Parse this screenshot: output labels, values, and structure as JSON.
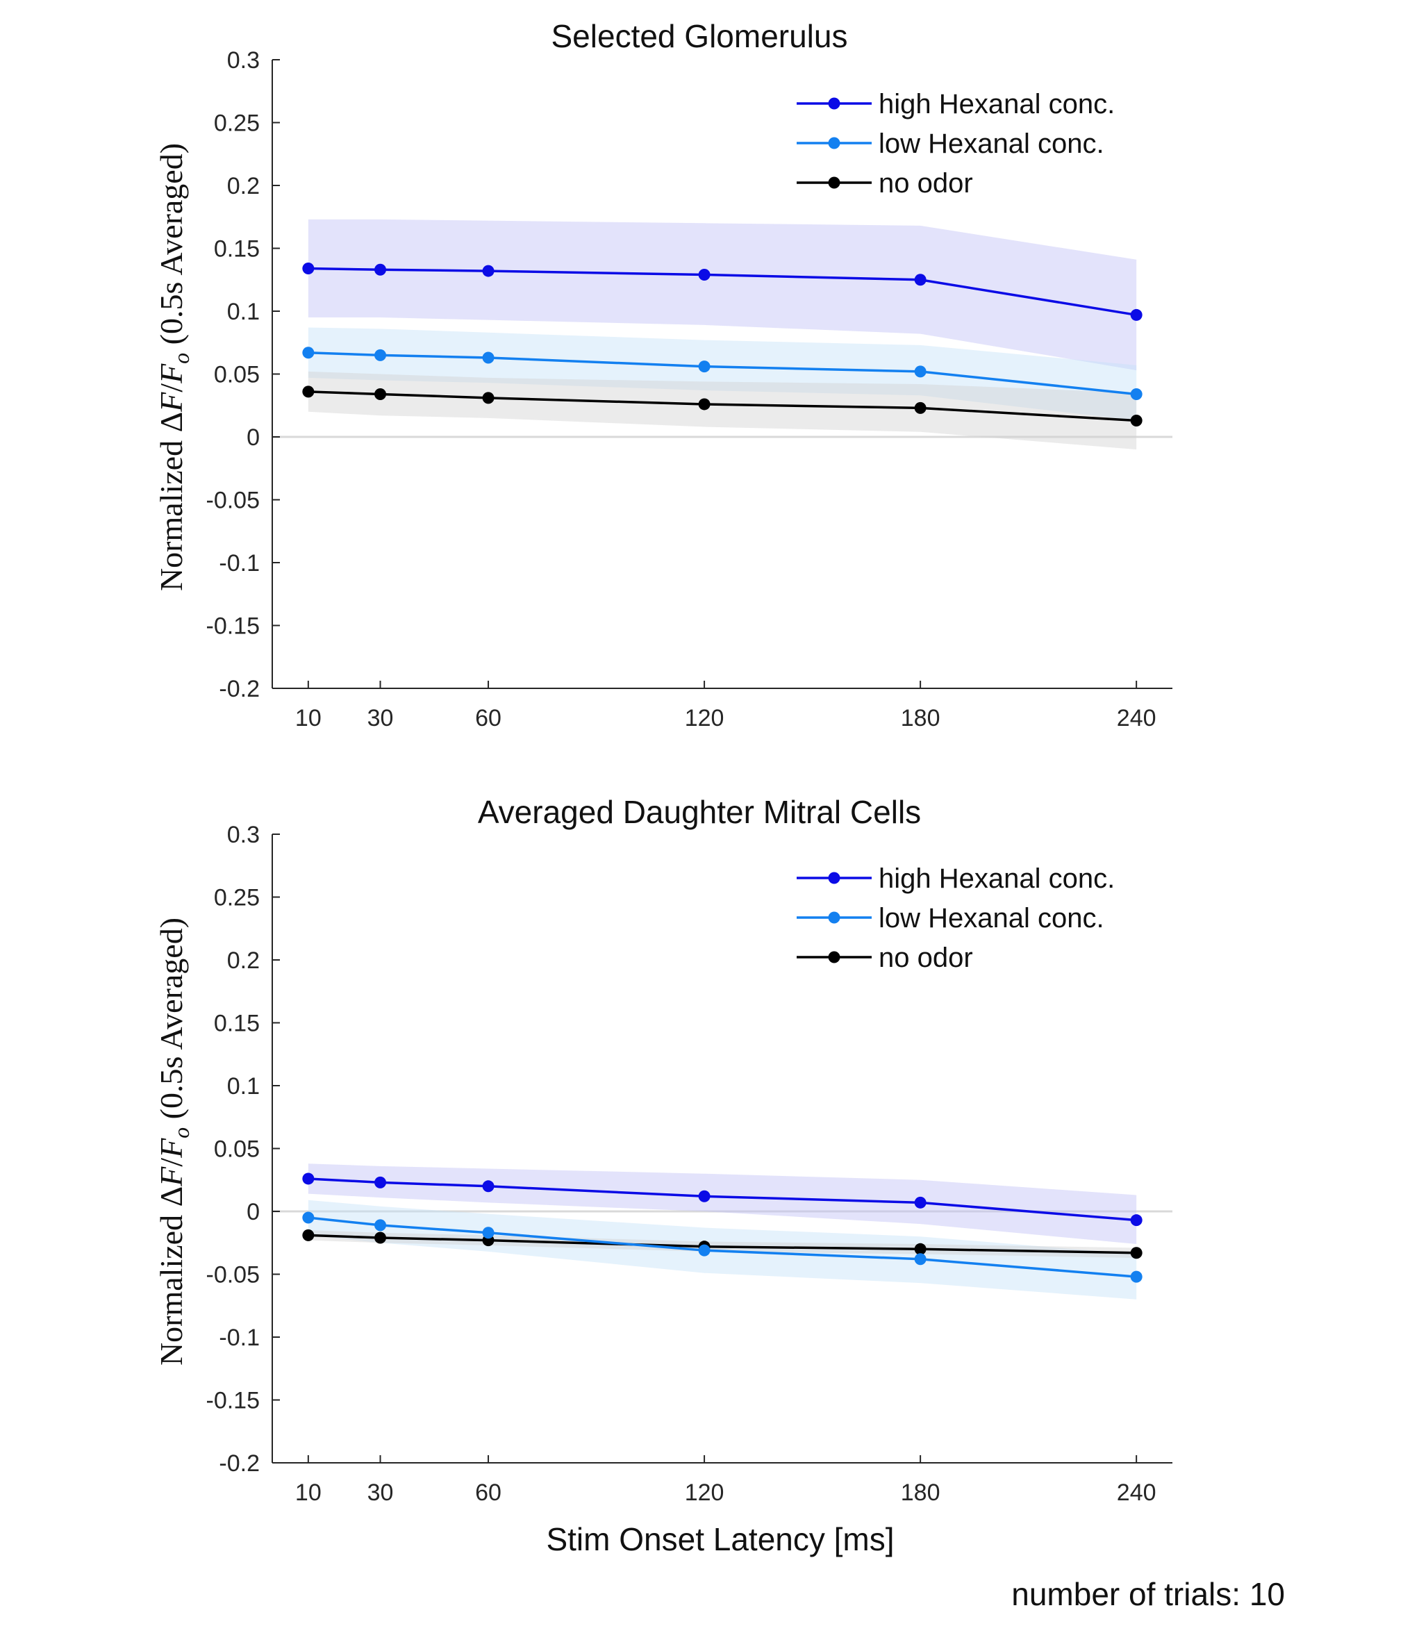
{
  "chart_data": [
    {
      "type": "line",
      "title": "Selected Glomerulus",
      "xlabel": "",
      "ylabel": "Normalized ΔF/Fo (0.5s Averaged)",
      "ylabel_parts": {
        "prefix": "Normalized ",
        "delta": "Δ",
        "F": "F",
        "slash": "/",
        "F2": "F",
        "sub": "o",
        "suffix": " (0.5s Averaged)"
      },
      "x": [
        10,
        30,
        60,
        120,
        180,
        240
      ],
      "xticks": [
        "10",
        "30",
        "60",
        "120",
        "180",
        "240"
      ],
      "xlim": [
        0,
        250
      ],
      "ylim": [
        -0.2,
        0.3
      ],
      "yticks": [
        "-0.2",
        "-0.15",
        "-0.1",
        "-0.05",
        "0",
        "0.05",
        "0.1",
        "0.15",
        "0.2",
        "0.25",
        "0.3"
      ],
      "legend_position": "top-right",
      "grid": false,
      "zero_line": true,
      "series": [
        {
          "name": "high Hexanal conc.",
          "color": "#0b0be6",
          "band_color": "#bdbdf5",
          "values": [
            0.134,
            0.133,
            0.132,
            0.129,
            0.125,
            0.097
          ],
          "lower": [
            0.095,
            0.095,
            0.093,
            0.089,
            0.082,
            0.053
          ],
          "upper": [
            0.173,
            0.173,
            0.172,
            0.17,
            0.168,
            0.141
          ]
        },
        {
          "name": "low Hexanal conc.",
          "color": "#1380f0",
          "band_color": "#c2dff9",
          "values": [
            0.067,
            0.065,
            0.063,
            0.056,
            0.052,
            0.034
          ],
          "lower": [
            0.047,
            0.045,
            0.043,
            0.037,
            0.033,
            0.013
          ],
          "upper": [
            0.087,
            0.086,
            0.083,
            0.077,
            0.073,
            0.057
          ]
        },
        {
          "name": "no odor",
          "color": "#000000",
          "band_color": "#cfcfcf",
          "values": [
            0.036,
            0.034,
            0.031,
            0.026,
            0.023,
            0.013
          ],
          "lower": [
            0.02,
            0.017,
            0.015,
            0.008,
            0.004,
            -0.01
          ],
          "upper": [
            0.052,
            0.05,
            0.047,
            0.044,
            0.042,
            0.035
          ]
        }
      ]
    },
    {
      "type": "line",
      "title": "Averaged Daughter Mitral Cells",
      "xlabel": "Stim Onset Latency [ms]",
      "ylabel": "Normalized ΔF/Fo (0.5s Averaged)",
      "ylabel_parts": {
        "prefix": "Normalized ",
        "delta": "Δ",
        "F": "F",
        "slash": "/",
        "F2": "F",
        "sub": "o",
        "suffix": " (0.5s Averaged)"
      },
      "x": [
        10,
        30,
        60,
        120,
        180,
        240
      ],
      "xticks": [
        "10",
        "30",
        "60",
        "120",
        "180",
        "240"
      ],
      "xlim": [
        0,
        250
      ],
      "ylim": [
        -0.2,
        0.3
      ],
      "yticks": [
        "-0.2",
        "-0.15",
        "-0.1",
        "-0.05",
        "0",
        "0.05",
        "0.1",
        "0.15",
        "0.2",
        "0.25",
        "0.3"
      ],
      "legend_position": "top-right",
      "grid": false,
      "zero_line": true,
      "series": [
        {
          "name": "high Hexanal conc.",
          "color": "#0b0be6",
          "band_color": "#bdbdf5",
          "values": [
            0.026,
            0.023,
            0.02,
            0.012,
            0.007,
            -0.007
          ],
          "lower": [
            0.014,
            0.011,
            0.007,
            0.0,
            -0.01,
            -0.026
          ],
          "upper": [
            0.038,
            0.036,
            0.034,
            0.03,
            0.025,
            0.013
          ]
        },
        {
          "name": "low Hexanal conc.",
          "color": "#1380f0",
          "band_color": "#c2dff9",
          "values": [
            -0.005,
            -0.011,
            -0.017,
            -0.031,
            -0.038,
            -0.052
          ],
          "lower": [
            -0.019,
            -0.025,
            -0.032,
            -0.049,
            -0.057,
            -0.07
          ],
          "upper": [
            0.009,
            0.004,
            -0.002,
            -0.013,
            -0.02,
            -0.034
          ]
        },
        {
          "name": "no odor",
          "color": "#000000",
          "band_color": "#cfcfcf",
          "values": [
            -0.019,
            -0.021,
            -0.023,
            -0.028,
            -0.03,
            -0.033
          ],
          "lower": [
            -0.023,
            -0.025,
            -0.027,
            -0.032,
            -0.034,
            -0.037
          ],
          "upper": [
            -0.015,
            -0.017,
            -0.019,
            -0.024,
            -0.026,
            -0.029
          ]
        }
      ]
    }
  ],
  "footer": {
    "trials_text": "number of trials: 10"
  }
}
